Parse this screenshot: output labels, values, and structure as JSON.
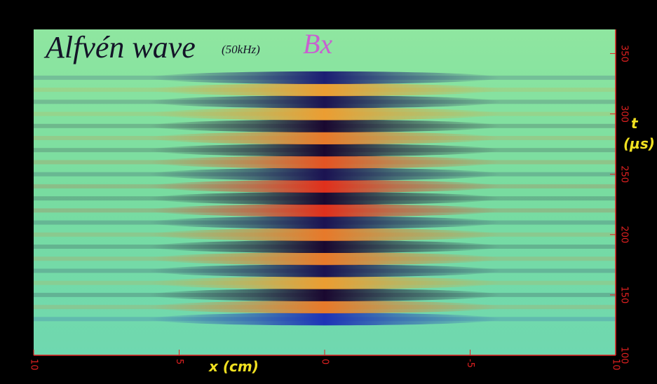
{
  "chart_data": {
    "type": "heatmap",
    "title": "Alfvén wave",
    "subtitle": "(50kHz)",
    "annotation": "Bx",
    "xlabel": "x (cm)",
    "ylabel": [
      "t",
      "(µs)"
    ],
    "xlim": [
      10,
      -10
    ],
    "xticks": [
      10,
      5,
      0,
      -5,
      {
        "value": -10,
        "label": "10"
      }
    ],
    "ylim": [
      100,
      370
    ],
    "yticks": [
      100,
      150,
      200,
      250,
      300,
      350
    ],
    "zlim": [
      -1,
      1
    ],
    "colormap": [
      "#1a0830",
      "#1f3ed8",
      "#7fe08a",
      "#f2e640",
      "#e0301c"
    ],
    "t": [
      130,
      140,
      150,
      160,
      170,
      180,
      190,
      200,
      210,
      220,
      230,
      240,
      250,
      260,
      270,
      280,
      290,
      300,
      310,
      320,
      330
    ],
    "values": [
      -0.6,
      0.8,
      -1,
      0.7,
      -0.9,
      0.8,
      -1,
      0.8,
      -0.9,
      1,
      -1,
      1,
      -0.9,
      0.9,
      -1,
      0.8,
      -1,
      0.7,
      -0.9,
      0.7,
      -0.8
    ]
  }
}
